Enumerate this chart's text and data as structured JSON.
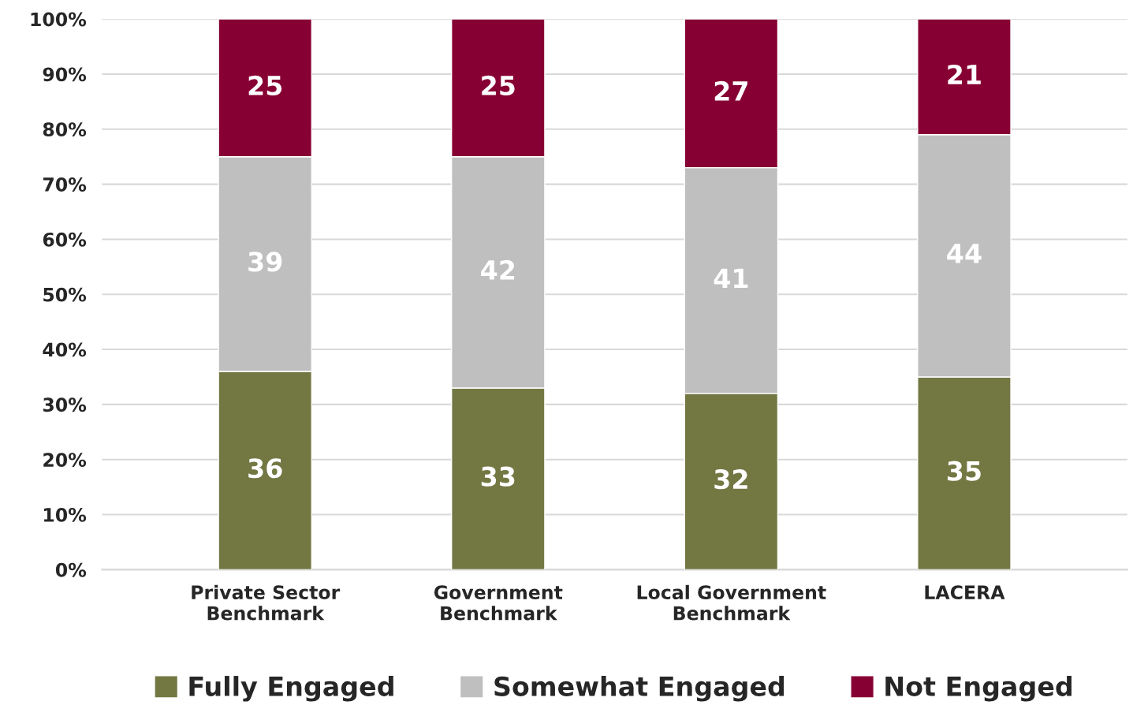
{
  "chart_data": {
    "type": "bar",
    "stacked": true,
    "categories": [
      "Private Sector\nBenchmark",
      "Government\nBenchmark",
      "Local Government\nBenchmark",
      "LACERA"
    ],
    "series": [
      {
        "name": "Fully Engaged",
        "color": "#737843",
        "values": [
          36,
          33,
          32,
          35
        ]
      },
      {
        "name": "Somewhat Engaged",
        "color": "#bfbfbf",
        "values": [
          39,
          42,
          41,
          44
        ]
      },
      {
        "name": "Not Engaged",
        "color": "#870033",
        "values": [
          25,
          25,
          27,
          21
        ]
      }
    ],
    "ylim": [
      0,
      100
    ],
    "yticks": [
      {
        "value": 0,
        "label": "0%"
      },
      {
        "value": 10,
        "label": "10%"
      },
      {
        "value": 20,
        "label": "20%"
      },
      {
        "value": 30,
        "label": "30%"
      },
      {
        "value": 40,
        "label": "40%"
      },
      {
        "value": 50,
        "label": "50%"
      },
      {
        "value": 60,
        "label": "60%"
      },
      {
        "value": 70,
        "label": "70%"
      },
      {
        "value": 80,
        "label": "80%"
      },
      {
        "value": 90,
        "label": "90%"
      },
      {
        "value": 100,
        "label": "100%"
      }
    ],
    "grid": "y",
    "legend": "bottom",
    "data_labels": true
  }
}
